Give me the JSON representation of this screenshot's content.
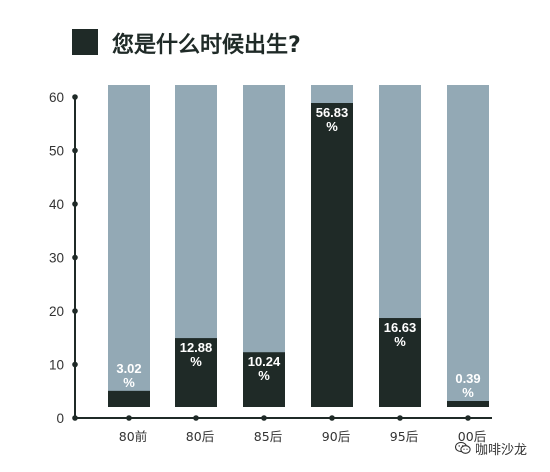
{
  "chart_data": {
    "type": "bar",
    "title": "您是什么时候出生?",
    "categories": [
      "80前",
      "80后",
      "85后",
      "90后",
      "95后",
      "00后"
    ],
    "values": [
      3.02,
      12.88,
      10.24,
      56.83,
      16.63,
      0.39
    ],
    "value_labels": [
      "3.02\n%",
      "12.88\n%",
      "10.24\n%",
      "56.83\n%",
      "16.63\n%",
      "0.39\n%"
    ],
    "ylim": [
      0,
      60
    ],
    "yticks": [
      0,
      10,
      20,
      30,
      40,
      50,
      60
    ],
    "grid": false,
    "colors": {
      "bar": "#1f2a27",
      "background_bar": "#93a9b5",
      "axis": "#1f2a27",
      "label_light": "#ffffff"
    }
  },
  "watermark": {
    "text": "咖啡沙龙",
    "icon": "wechat-icon"
  }
}
